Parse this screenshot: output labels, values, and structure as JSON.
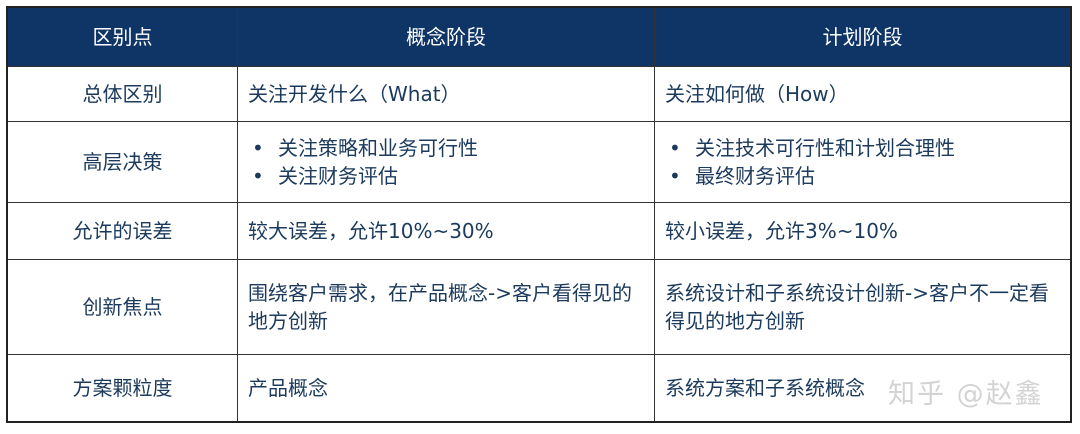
{
  "header": [
    "区别点",
    "概念阶段",
    "计划阶段"
  ],
  "rows": [
    {
      "label": "总体区别",
      "concept": "关注开发什么（What）",
      "plan": "关注如何做（How）"
    },
    {
      "label": "高层决策",
      "concept": [
        "关注策略和业务可行性",
        "关注财务评估"
      ],
      "plan": [
        "关注技术可行性和计划合理性",
        "最终财务评估"
      ]
    },
    {
      "label": "允许的误差",
      "concept": "较大误差，允许10%~30%",
      "plan": "较小误差，允许3%~10%"
    },
    {
      "label": "创新焦点",
      "concept": "围绕客户需求，在产品概念->客户看得见的地方创新",
      "plan": "系统设计和子系统设计创新->客户不一定看得见的地方创新"
    },
    {
      "label": "方案颗粒度",
      "concept": "产品概念",
      "plan": "系统方案和子系统概念"
    }
  ],
  "watermark": "知乎 @赵鑫",
  "colors": {
    "header_bg": "#0f3466",
    "text": "#1b3a5c"
  }
}
